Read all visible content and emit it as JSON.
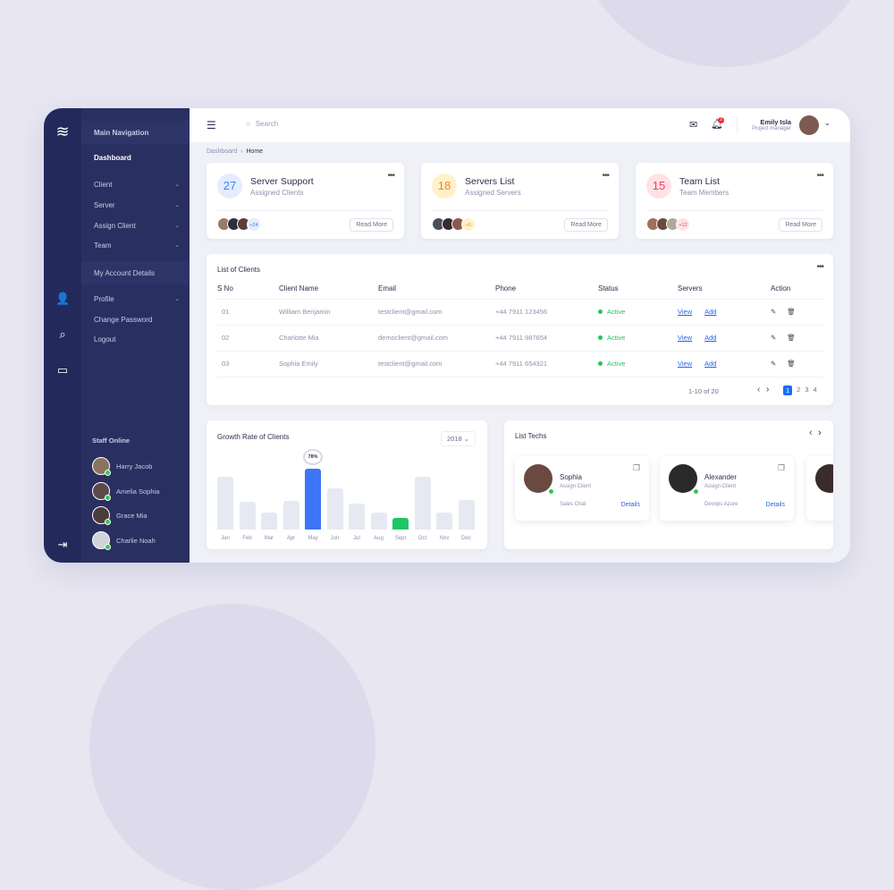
{
  "sidebar": {
    "main_nav_label": "Main Navigation",
    "items": [
      {
        "label": "Dashboard"
      },
      {
        "label": "Client"
      },
      {
        "label": "Server"
      },
      {
        "label": "Assign Client"
      },
      {
        "label": "Team"
      }
    ],
    "account_label": "My Account Details",
    "account_items": [
      {
        "label": "Profile"
      },
      {
        "label": "Change Password"
      },
      {
        "label": "Logout"
      }
    ],
    "staff_label": "Staff Online",
    "staff": [
      {
        "name": "Harry Jacob"
      },
      {
        "name": "Amelia Sophia"
      },
      {
        "name": "Grace Mia"
      },
      {
        "name": "Charlie Noah"
      }
    ]
  },
  "header": {
    "search_placeholder": "Search",
    "notification_count": "2",
    "user_name": "Emily Isla",
    "user_role": "Project manager"
  },
  "breadcrumb": {
    "parent": "Dashboard",
    "current": "Home"
  },
  "stat_cards": [
    {
      "number": "27",
      "title": "Server Support",
      "subtitle": "Assigned Clients",
      "extra": "+24",
      "button": "Read More",
      "color": "#3b82f6"
    },
    {
      "number": "18",
      "title": "Servers List",
      "subtitle": "Assigned Servers",
      "extra": "+5",
      "button": "Read More",
      "color": "#f59e0b"
    },
    {
      "number": "15",
      "title": "Team List",
      "subtitle": "Team Members",
      "extra": "+12",
      "button": "Read More",
      "color": "#ef4466"
    }
  ],
  "clients": {
    "title": "List of Clients",
    "columns": [
      "S No",
      "Client Name",
      "Email",
      "Phone",
      "Status",
      "Servers",
      "Action"
    ],
    "rows": [
      {
        "sno": "01",
        "name": "William Benjamin",
        "email": "testclient@gmail.com",
        "phone": "+44 7911 123456",
        "status": "Active",
        "view": "View",
        "add": "Add"
      },
      {
        "sno": "02",
        "name": "Charlotte Mia",
        "email": "democlient@gmail.com",
        "phone": "+44 7911 987654",
        "status": "Active",
        "view": "View",
        "add": "Add"
      },
      {
        "sno": "03",
        "name": "Sophia Emily",
        "email": "testclient@gmail.com",
        "phone": "+44 7911 654321",
        "status": "Active",
        "view": "View",
        "add": "Add"
      }
    ],
    "range": "1-10 of 20",
    "pages": [
      "1",
      "2",
      "3",
      "4"
    ]
  },
  "chart_data": {
    "type": "bar",
    "title": "Growth Rate of Clients",
    "year": "2018",
    "categories": [
      "Jan",
      "Feb",
      "Mar",
      "Apr",
      "May",
      "Jun",
      "Jul",
      "Aug",
      "Sept",
      "Oct",
      "Nov",
      "Dec"
    ],
    "values": [
      68,
      36,
      22,
      37,
      78,
      53,
      33,
      22,
      15,
      68,
      22,
      38
    ],
    "highlight": {
      "May": "78%"
    },
    "colors": {
      "default": "#e6e9f1",
      "highlight": "#3b76f6",
      "lowest": "#1fc566"
    }
  },
  "techs": {
    "title": "List Techs",
    "items": [
      {
        "name": "Sophia",
        "role": "Assign Client",
        "tag": "Sales Chat",
        "link": "Details"
      },
      {
        "name": "Alexander",
        "role": "Assign Client",
        "tag": "Devops Azure",
        "link": "Details"
      }
    ]
  }
}
